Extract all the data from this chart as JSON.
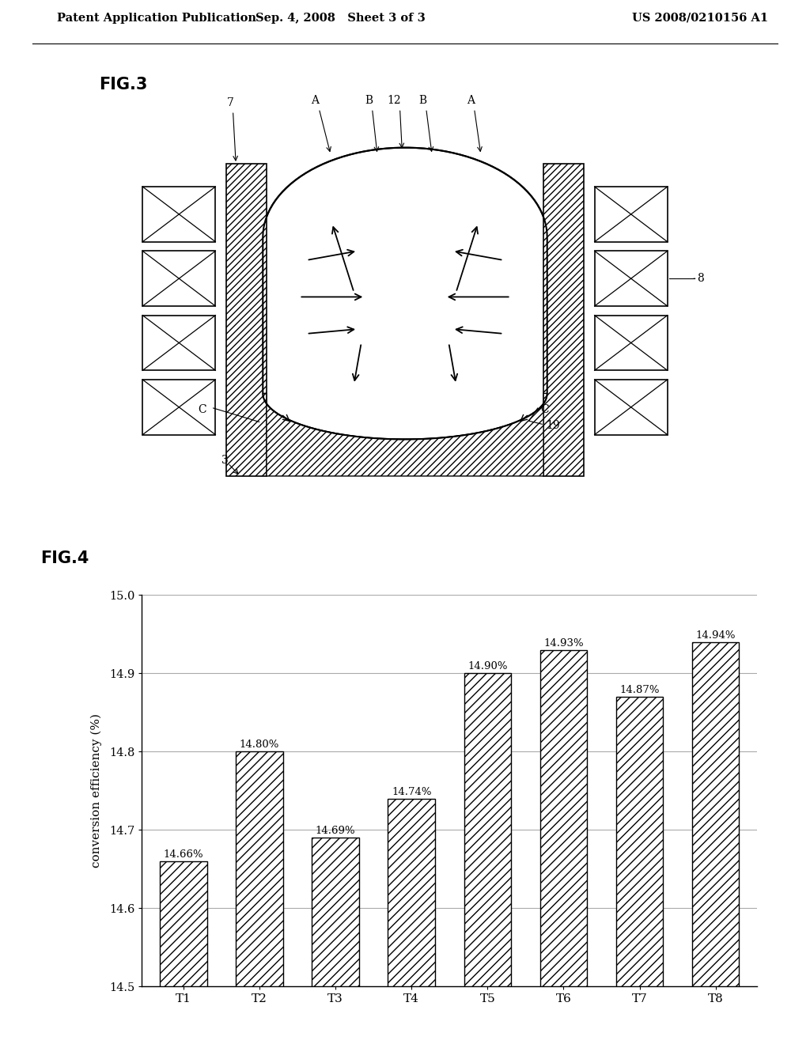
{
  "header_left": "Patent Application Publication",
  "header_mid": "Sep. 4, 2008   Sheet 3 of 3",
  "header_right": "US 2008/0210156 A1",
  "fig3_label": "FIG.3",
  "fig4_label": "FIG.4",
  "bar_categories": [
    "T1",
    "T2",
    "T3",
    "T4",
    "T5",
    "T6",
    "T7",
    "T8"
  ],
  "bar_values": [
    14.66,
    14.8,
    14.69,
    14.74,
    14.9,
    14.93,
    14.87,
    14.94
  ],
  "bar_labels": [
    "14.66%",
    "14.80%",
    "14.69%",
    "14.74%",
    "14.90%",
    "14.93%",
    "14.87%",
    "14.94%"
  ],
  "ylabel": "conversion efficiency (%)",
  "ylim_min": 14.5,
  "ylim_max": 15.0,
  "yticks": [
    14.5,
    14.6,
    14.7,
    14.8,
    14.9,
    15.0
  ],
  "background_color": "#ffffff",
  "bar_hatch": "///",
  "bar_facecolor": "#ffffff",
  "bar_edgecolor": "#000000",
  "grid_color": "#aaaaaa"
}
